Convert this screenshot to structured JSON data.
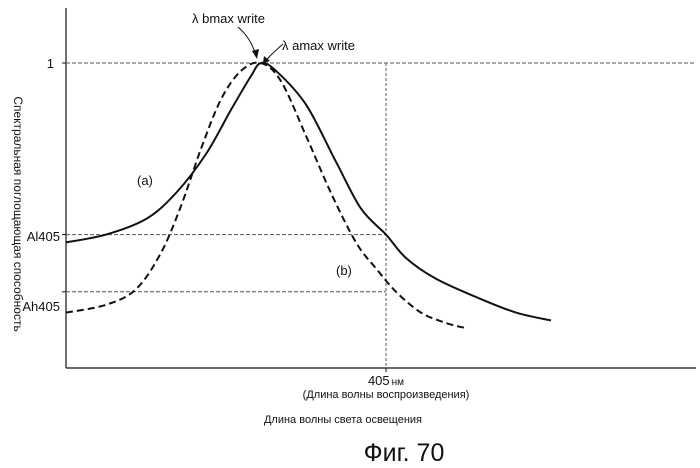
{
  "chart_data": {
    "type": "line",
    "ylabel": "Спектральная поглощающая способность",
    "xlabel": "Длина волны света освещения",
    "x_tick": {
      "value": 405,
      "label_num": "405",
      "label_unit": "нм"
    },
    "x_tick_caption": "(Длина волны воспроизведения)",
    "y_ticks": [
      {
        "label_main": "1",
        "label_sub": "",
        "value": 1.0
      },
      {
        "label_main": "Al",
        "label_sub": "405",
        "value": 0.34
      },
      {
        "label_main": "Ah",
        "label_sub": "405",
        "value": 0.12
      }
    ],
    "peaks": [
      {
        "label_main": "λ b",
        "label_sub": "max write"
      },
      {
        "label_main": "λ a",
        "label_sub": "max write"
      }
    ],
    "series": [
      {
        "name": "(a)",
        "style": "solid",
        "points": [
          [
            0,
            0.31
          ],
          [
            40,
            0.34
          ],
          [
            80,
            0.4
          ],
          [
            110,
            0.5
          ],
          [
            140,
            0.65
          ],
          [
            165,
            0.82
          ],
          [
            185,
            0.95
          ],
          [
            195,
            1.0
          ],
          [
            210,
            0.97
          ],
          [
            240,
            0.84
          ],
          [
            270,
            0.62
          ],
          [
            295,
            0.44
          ],
          [
            320,
            0.34
          ],
          [
            340,
            0.25
          ],
          [
            370,
            0.17
          ],
          [
            410,
            0.1
          ],
          [
            450,
            0.04
          ],
          [
            485,
            0.01
          ]
        ]
      },
      {
        "name": "(b)",
        "style": "dashed",
        "points": [
          [
            0,
            0.04
          ],
          [
            40,
            0.07
          ],
          [
            70,
            0.13
          ],
          [
            95,
            0.27
          ],
          [
            115,
            0.45
          ],
          [
            135,
            0.67
          ],
          [
            155,
            0.86
          ],
          [
            175,
            0.97
          ],
          [
            195,
            1.0
          ],
          [
            215,
            0.93
          ],
          [
            240,
            0.72
          ],
          [
            265,
            0.5
          ],
          [
            290,
            0.31
          ],
          [
            310,
            0.21
          ],
          [
            330,
            0.12
          ],
          [
            355,
            0.04
          ],
          [
            380,
            0.0
          ],
          [
            400,
            -0.02
          ]
        ]
      }
    ],
    "xlim": [
      0,
      630
    ],
    "ylim": [
      -0.05,
      1.15
    ],
    "grid": false,
    "legend": "none",
    "colors": {
      "line": "#111111",
      "guide": "#555555"
    }
  },
  "caption": "Фиг. 70"
}
